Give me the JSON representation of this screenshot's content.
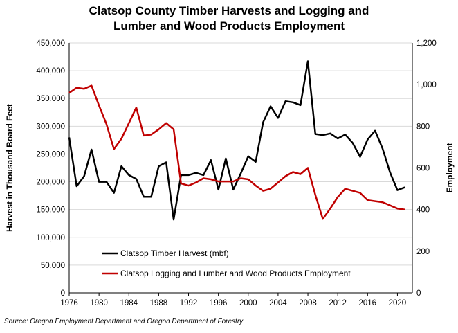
{
  "chart_data": {
    "type": "line",
    "title_line1": "Clatsop County Timber Harvests and Logging and",
    "title_line2": "Lumber and Wood Products Employment",
    "xlabel": "",
    "ylabel_left": "Harvest in Thousand Board Feet",
    "ylabel_right": "Employment",
    "source": "Source: Oregon Employment Department and Oregon Department of Forestry",
    "x": [
      1976,
      1977,
      1978,
      1979,
      1980,
      1981,
      1982,
      1983,
      1984,
      1985,
      1986,
      1987,
      1988,
      1989,
      1990,
      1991,
      1992,
      1993,
      1994,
      1995,
      1996,
      1997,
      1998,
      1999,
      2000,
      2001,
      2002,
      2003,
      2004,
      2005,
      2006,
      2007,
      2008,
      2009,
      2010,
      2011,
      2012,
      2013,
      2014,
      2015,
      2016,
      2017,
      2018,
      2019,
      2020,
      2021
    ],
    "xlim": [
      1976,
      2022
    ],
    "x_ticks": [
      "1976",
      "1980",
      "1984",
      "1988",
      "1992",
      "1996",
      "2000",
      "2004",
      "2008",
      "2012",
      "2016",
      "2020"
    ],
    "y_left_lim": [
      0,
      450000
    ],
    "y_left_ticks": [
      "0",
      "50,000",
      "100,000",
      "150,000",
      "200,000",
      "250,000",
      "300,000",
      "350,000",
      "400,000",
      "450,000"
    ],
    "y_right_lim": [
      0,
      1200
    ],
    "y_right_ticks": [
      "0",
      "200",
      "400",
      "600",
      "800",
      "1,000",
      "1,200"
    ],
    "grid": "horizontal",
    "legend_position": "bottom-left",
    "series": [
      {
        "name": "Clatsop Timber Harvest (mbf)",
        "axis": "left",
        "color": "#000000",
        "values": [
          280000,
          192000,
          210000,
          258000,
          200000,
          200000,
          180000,
          228000,
          212000,
          205000,
          173000,
          173000,
          228000,
          235000,
          132000,
          212000,
          212000,
          216000,
          212000,
          239000,
          186000,
          242000,
          186000,
          215000,
          246000,
          236000,
          307000,
          336000,
          315000,
          345000,
          343000,
          338000,
          417000,
          286000,
          284000,
          287000,
          278000,
          285000,
          270000,
          245000,
          276000,
          292000,
          260000,
          217000,
          185000,
          190000
        ]
      },
      {
        "name": "Clatsop Logging and Lumber and  Wood Products Employment",
        "axis": "right",
        "color": "#c00000",
        "values": [
          960,
          985,
          980,
          995,
          900,
          810,
          690,
          740,
          815,
          890,
          755,
          760,
          785,
          815,
          785,
          525,
          515,
          530,
          550,
          545,
          535,
          535,
          535,
          550,
          545,
          515,
          490,
          500,
          530,
          560,
          580,
          570,
          600,
          470,
          355,
          405,
          460,
          500,
          490,
          480,
          445,
          440,
          435,
          420,
          405,
          400
        ]
      }
    ]
  }
}
